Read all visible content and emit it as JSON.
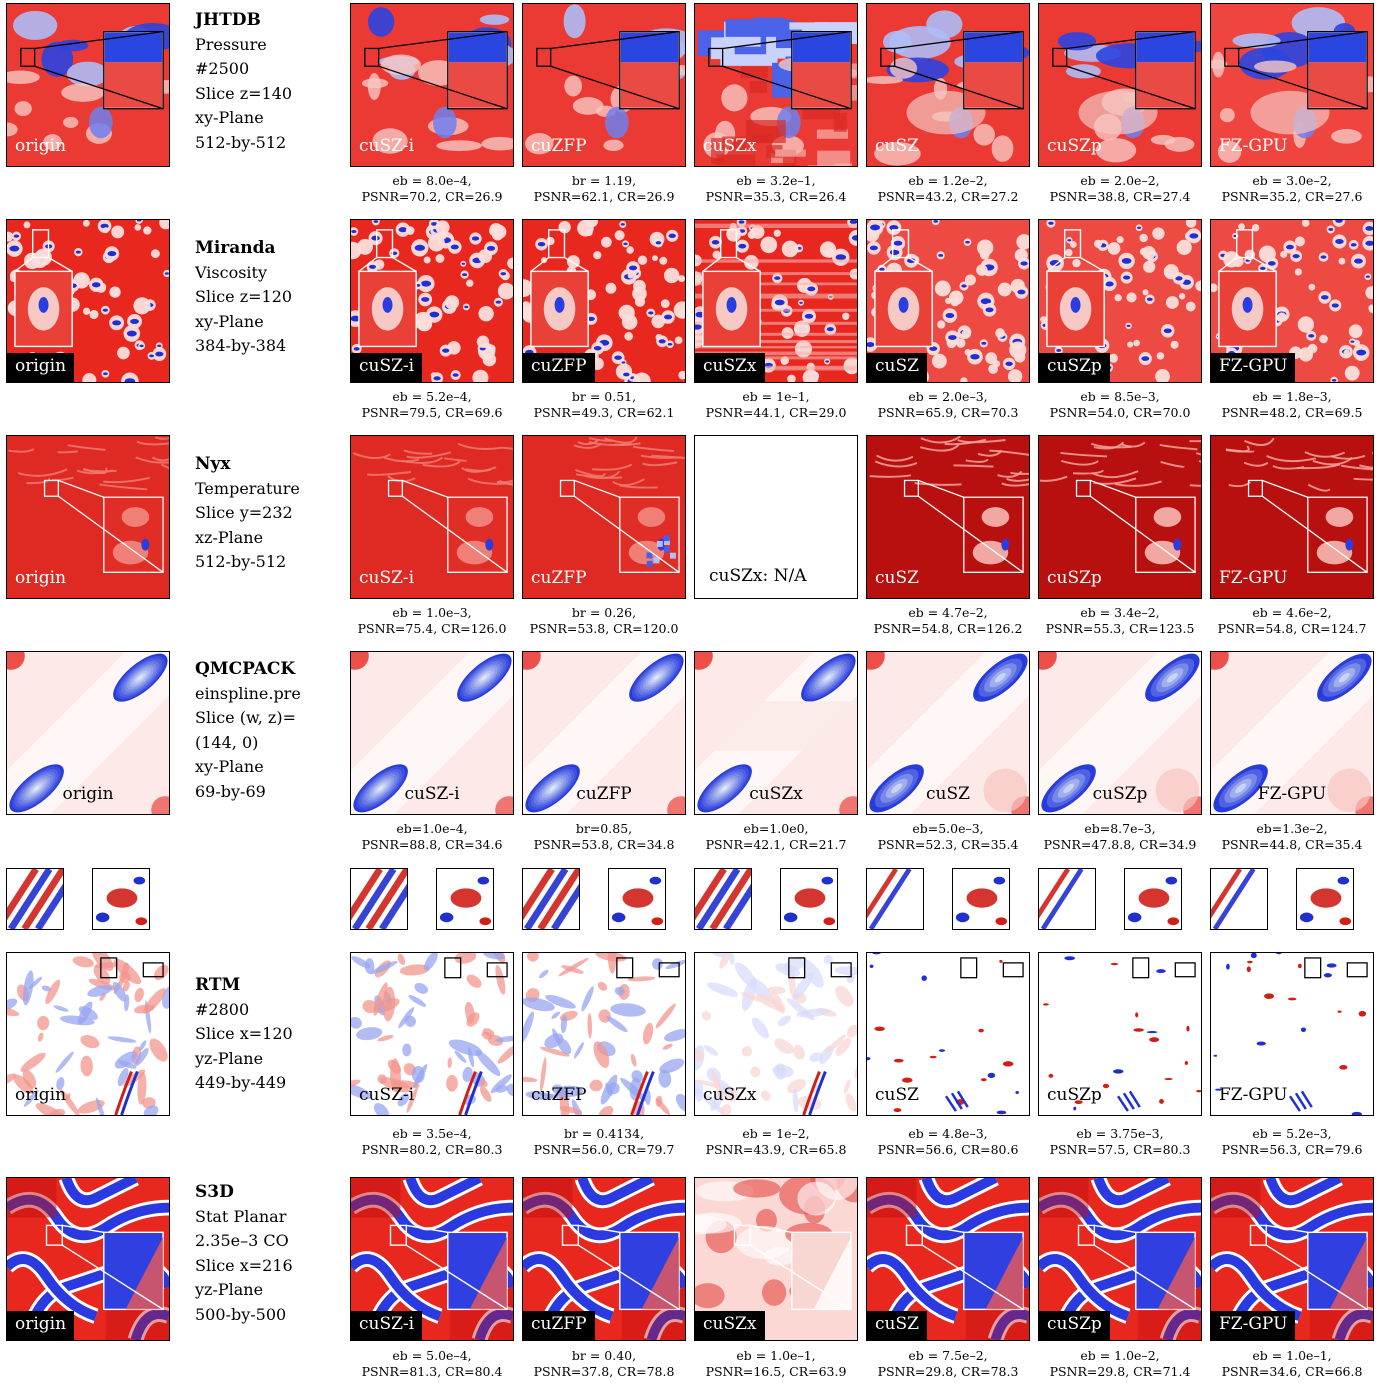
{
  "columns": [
    "origin",
    "cuSZ-i",
    "cuZFP",
    "cuSZx",
    "cuSZ",
    "cuSZp",
    "FZ-GPU"
  ],
  "rows": [
    {
      "dataset": "JHTDB",
      "meta_lines": [
        "Pressure",
        "#2500",
        "Slice z=140",
        "xy-Plane",
        "512-by-512"
      ],
      "labels": [
        "origin",
        "cuSZ-i",
        "cuZFP",
        "cuSZx",
        "cuSZ",
        "cuSZp",
        "FZ-GPU"
      ],
      "captions": [
        [
          "eb = 8.0e–4,",
          "PSNR=70.2, CR=26.9"
        ],
        [
          "br = 1.19,",
          "PSNR=62.1, CR=26.9"
        ],
        [
          "eb = 3.2e–1,",
          "PSNR=35.3, CR=26.4"
        ],
        [
          "eb = 1.2e–2,",
          "PSNR=43.2, CR=27.2"
        ],
        [
          "eb = 2.0e–2,",
          "PSNR=38.8, CR=27.4"
        ],
        [
          "eb = 3.0e–2,",
          "PSNR=35.2, CR=27.6"
        ]
      ]
    },
    {
      "dataset": "Miranda",
      "meta_lines": [
        "Viscosity",
        "Slice z=120",
        "xy-Plane",
        "384-by-384"
      ],
      "labels": [
        "origin",
        "cuSZ-i",
        "cuZFP",
        "cuSZx",
        "cuSZ",
        "cuSZp",
        "FZ-GPU"
      ],
      "captions": [
        [
          "eb = 5.2e–4,",
          "PSNR=79.5, CR=69.6"
        ],
        [
          "br = 0.51,",
          "PSNR=49.3, CR=62.1"
        ],
        [
          "eb = 1e–1,",
          "PSNR=44.1, CR=29.0"
        ],
        [
          "eb = 2.0e–3,",
          "PSNR=65.9, CR=70.3"
        ],
        [
          "eb = 8.5e–3,",
          "PSNR=54.0, CR=70.0"
        ],
        [
          "eb = 1.8e–3,",
          "PSNR=48.2, CR=69.5"
        ]
      ]
    },
    {
      "dataset": "Nyx",
      "meta_lines": [
        "Temperature",
        "Slice y=232",
        "xz-Plane",
        "512-by-512"
      ],
      "labels": [
        "origin",
        "cuSZ-i",
        "cuZFP",
        "cuSZx: N/A",
        "cuSZ",
        "cuSZp",
        "FZ-GPU"
      ],
      "captions": [
        [
          "eb = 1.0e–3,",
          "PSNR=75.4, CR=126.0"
        ],
        [
          "br = 0.26,",
          "PSNR=53.8, CR=120.0"
        ],
        [
          "",
          ""
        ],
        [
          "eb = 4.7e–2,",
          "PSNR=54.8, CR=126.2"
        ],
        [
          "eb = 3.4e–2,",
          "PSNR=55.3, CR=123.5"
        ],
        [
          "eb = 4.6e–2,",
          "PSNR=54.8, CR=124.7"
        ]
      ]
    },
    {
      "dataset": "QMCPACK",
      "meta_lines": [
        "einspline.pre",
        "Slice (w, z)=",
        "(144, 0)",
        "xy-Plane",
        "69-by-69"
      ],
      "labels": [
        "origin",
        "cuSZ-i",
        "cuZFP",
        "cuSZx",
        "cuSZ",
        "cuSZp",
        "FZ-GPU"
      ],
      "captions": [
        [
          "eb=1.0e–4,",
          "PSNR=88.8, CR=34.6"
        ],
        [
          "br=0.85,",
          "PSNR=53.8, CR=34.8"
        ],
        [
          "eb=1.0e0,",
          "PSNR=42.1, CR=21.7"
        ],
        [
          "eb=5.0e–3,",
          "PSNR=52.3, CR=35.4"
        ],
        [
          "eb=8.7e–3,",
          "PSNR=47.8.8, CR=34.9"
        ],
        [
          "eb=1.3e–2,",
          "PSNR=44.8, CR=35.4"
        ]
      ]
    },
    {
      "dataset": "RTM",
      "meta_lines": [
        "#2800",
        "Slice x=120",
        "yz-Plane",
        "449-by-449"
      ],
      "labels": [
        "origin",
        "cuSZ-i",
        "cuZFP",
        "cuSZx",
        "cuSZ",
        "cuSZp",
        "FZ-GPU"
      ],
      "captions": [
        [
          "eb = 3.5e–4,",
          "PSNR=80.2, CR=80.3"
        ],
        [
          "br = 0.4134,",
          "PSNR=56.0, CR=79.7"
        ],
        [
          "eb = 1e–2,",
          "PSNR=43.9, CR=65.8"
        ],
        [
          "eb = 4.8e–3,",
          "PSNR=56.6, CR=80.6"
        ],
        [
          "eb = 3.75e–3,",
          "PSNR=57.5, CR=80.3"
        ],
        [
          "eb = 5.2e–3,",
          "PSNR=56.3, CR=79.6"
        ]
      ]
    },
    {
      "dataset": "S3D",
      "meta_lines": [
        "Stat Planar",
        "2.35e–3 CO",
        "Slice x=216",
        "yz-Plane",
        "500-by-500"
      ],
      "labels": [
        "origin",
        "cuSZ-i",
        "cuZFP",
        "cuSZx",
        "cuSZ",
        "cuSZp",
        "FZ-GPU"
      ],
      "captions": [
        [
          "eb = 5.0e–4,",
          "PSNR=81.3, CR=80.4"
        ],
        [
          "br = 0.40,",
          "PSNR=37.8, CR=78.8"
        ],
        [
          "eb = 1.0e–1,",
          "PSNR=16.5, CR=63.9"
        ],
        [
          "eb = 7.5e–2,",
          "PSNR=29.8, CR=78.3"
        ],
        [
          "eb = 1.0e–2,",
          "PSNR=29.8, CR=71.4"
        ],
        [
          "eb = 1.0e–1,",
          "PSNR=34.6, CR=66.8"
        ]
      ]
    }
  ],
  "colors": {
    "red": "#e8231c",
    "dark_red": "#b30000",
    "blue": "#1f2fd6",
    "white": "#ffffff",
    "black": "#000000"
  }
}
